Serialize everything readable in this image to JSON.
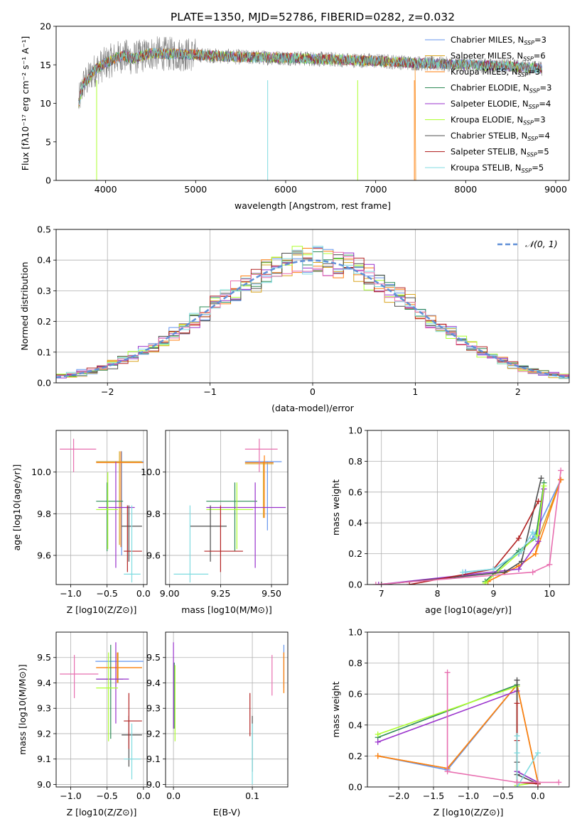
{
  "title": "PLATE=1350, MJD=52786, FIBERID=0282, z=0.032",
  "colors": {
    "ChM": "#6495ed",
    "SaM": "#daa520",
    "KrM": "#ff7f0e",
    "ChE": "#2e8b57",
    "SaE": "#9932cc",
    "KrE": "#adff2f",
    "ChS": "#4d4d4d",
    "SaS": "#b22222",
    "KrS": "#7fdbe0",
    "pink": "#e86fb0",
    "model_gray": "#808080",
    "gauss": "#5f8fd7"
  },
  "legend_spectrum": [
    {
      "label": "Chabrier MILES, N",
      "sub": "SSP",
      "tail": "=3",
      "color": "#6495ed"
    },
    {
      "label": "Salpeter MILES, N",
      "sub": "SSP",
      "tail": "=6",
      "color": "#daa520"
    },
    {
      "label": "Kroupa MILES, N",
      "sub": "SSP",
      "tail": "=3",
      "color": "#ff7f0e"
    },
    {
      "label": "Chabrier ELODIE, N",
      "sub": "SSP",
      "tail": "=3",
      "color": "#2e8b57"
    },
    {
      "label": "Salpeter ELODIE, N",
      "sub": "SSP",
      "tail": "=4",
      "color": "#9932cc"
    },
    {
      "label": "Kroupa ELODIE, N",
      "sub": "SSP",
      "tail": "=3",
      "color": "#adff2f"
    },
    {
      "label": "Chabrier STELIB, N",
      "sub": "SSP",
      "tail": "=4",
      "color": "#4d4d4d"
    },
    {
      "label": "Salpeter STELIB, N",
      "sub": "SSP",
      "tail": "=5",
      "color": "#b22222"
    },
    {
      "label": "Kroupa STELIB, N",
      "sub": "SSP",
      "tail": "=5",
      "color": "#7fdbe0"
    }
  ],
  "legend_gauss": "𝒩(0, 1)",
  "chart_data": [
    {
      "type": "line",
      "title": "PLATE=1350, MJD=52786, FIBERID=0282, z=0.032",
      "xlabel": "wavelength [Angstrom, rest frame]",
      "ylabel": "Flux [fλ10⁻¹⁷ erg cm⁻² s⁻¹ A⁻¹]",
      "xlim": [
        3450,
        9150
      ],
      "ylim": [
        0,
        20
      ],
      "xticks": [
        4000,
        5000,
        6000,
        7000,
        8000,
        9000
      ],
      "yticks": [
        0,
        5,
        10,
        15,
        20
      ],
      "data_range": [
        3700,
        8850
      ],
      "model_dropouts": [
        {
          "x": 3900,
          "y": 0
        },
        {
          "x": 5800,
          "y": 0
        },
        {
          "x": 6800,
          "y": 0
        },
        {
          "x": 7430,
          "y": 0
        }
      ],
      "continuum": [
        [
          3700,
          10
        ],
        [
          3750,
          12.5
        ],
        [
          3800,
          13
        ],
        [
          3850,
          14
        ],
        [
          3900,
          14.5
        ],
        [
          4000,
          15.2
        ],
        [
          4100,
          15.8
        ],
        [
          4200,
          16.2
        ],
        [
          4300,
          15.8
        ],
        [
          4500,
          16.5
        ],
        [
          5000,
          16.3
        ],
        [
          5500,
          16
        ],
        [
          6000,
          15.9
        ],
        [
          6500,
          15.7
        ],
        [
          7000,
          15.5
        ],
        [
          7500,
          15.2
        ],
        [
          8000,
          15
        ],
        [
          8500,
          14.8
        ],
        [
          8850,
          14.5
        ]
      ],
      "grid": false,
      "legend_position": "top-right"
    },
    {
      "type": "histogram",
      "xlabel": "(data-model)/error",
      "ylabel": "Normed distribution",
      "xlim": [
        -2.5,
        2.5
      ],
      "ylim": [
        0,
        0.5
      ],
      "xticks": [
        -2,
        -1,
        0,
        1,
        2
      ],
      "yticks": [
        0.0,
        0.1,
        0.2,
        0.3,
        0.4,
        0.5
      ],
      "bin_width": 0.1,
      "gauss": {
        "mean": 0,
        "sigma": 1,
        "label": "𝒩(0, 1)"
      },
      "grid": true,
      "legend_position": "top-right"
    },
    {
      "type": "scatter",
      "xlabel": "Z [log10(Z/Z⊙)]",
      "ylabel": "age [log10(age/yr)]",
      "xlim": [
        -1.2,
        0.05
      ],
      "ylim": [
        9.46,
        10.2
      ],
      "xticks": [
        -1.0,
        -0.5,
        0.0
      ],
      "yticks": [
        9.6,
        9.8,
        10.0
      ],
      "errorbars": [
        {
          "c": "ChM",
          "x": -0.3,
          "y": 10.05,
          "xl": -0.65,
          "xh": 0.0,
          "yl": 9.6,
          "yh": 10.1
        },
        {
          "c": "SaM",
          "x": -0.33,
          "y": 10.05,
          "xl": -0.65,
          "xh": -0.02,
          "yl": 9.65,
          "yh": 10.1
        },
        {
          "c": "KrM",
          "x": -0.31,
          "y": 10.045,
          "xl": -0.65,
          "xh": 0.0,
          "yl": 9.64,
          "yh": 10.1
        },
        {
          "c": "ChE",
          "x": -0.5,
          "y": 9.86,
          "xl": -0.65,
          "xh": -0.28,
          "yl": 9.62,
          "yh": 9.95
        },
        {
          "c": "SaE",
          "x": -0.38,
          "y": 9.83,
          "xl": -0.62,
          "xh": -0.12,
          "yl": 9.54,
          "yh": 10.05
        },
        {
          "c": "KrE",
          "x": -0.49,
          "y": 9.82,
          "xl": -0.65,
          "xh": -0.35,
          "yl": 9.63,
          "yh": 10.0
        },
        {
          "c": "ChS",
          "x": -0.2,
          "y": 9.74,
          "xl": -0.3,
          "xh": -0.02,
          "yl": 9.57,
          "yh": 9.84
        },
        {
          "c": "SaS",
          "x": -0.22,
          "y": 9.62,
          "xl": -0.27,
          "xh": -0.02,
          "yl": 9.52,
          "yh": 9.84
        },
        {
          "c": "KrS",
          "x": -0.16,
          "y": 9.51,
          "xl": -0.27,
          "xh": -0.04,
          "yl": 9.47,
          "yh": 9.84
        },
        {
          "c": "pink",
          "x": -0.96,
          "y": 10.11,
          "xl": -1.15,
          "xh": -0.65,
          "yl": 10.0,
          "yh": 10.16
        }
      ],
      "grid": true
    },
    {
      "type": "scatter",
      "xlabel": "mass [log10(M/M⊙)]",
      "ylabel": "",
      "xlim": [
        8.98,
        9.58
      ],
      "ylim": [
        9.46,
        10.2
      ],
      "xticks": [
        9.0,
        9.25,
        9.5
      ],
      "yticks": [
        9.6,
        9.8,
        10.0
      ],
      "errorbars": [
        {
          "c": "ChM",
          "x": 9.48,
          "y": 10.05,
          "xl": 9.37,
          "xh": 9.55,
          "yl": 9.72,
          "yh": 10.05
        },
        {
          "c": "SaM",
          "x": 9.46,
          "y": 10.04,
          "xl": 9.37,
          "xh": 9.51,
          "yl": 9.78,
          "yh": 10.05
        },
        {
          "c": "KrM",
          "x": 9.465,
          "y": 10.045,
          "xl": 9.37,
          "xh": 9.51,
          "yl": 9.78,
          "yh": 10.08
        },
        {
          "c": "ChE",
          "x": 9.32,
          "y": 9.86,
          "xl": 9.18,
          "xh": 9.43,
          "yl": 9.62,
          "yh": 9.95
        },
        {
          "c": "SaE",
          "x": 9.42,
          "y": 9.83,
          "xl": 9.18,
          "xh": 9.57,
          "yl": 9.54,
          "yh": 9.95
        },
        {
          "c": "KrE",
          "x": 9.33,
          "y": 9.82,
          "xl": 9.18,
          "xh": 9.41,
          "yl": 9.63,
          "yh": 9.95
        },
        {
          "c": "ChS",
          "x": 9.2,
          "y": 9.74,
          "xl": 9.1,
          "xh": 9.28,
          "yl": 9.57,
          "yh": 9.84
        },
        {
          "c": "SaS",
          "x": 9.25,
          "y": 9.62,
          "xl": 9.17,
          "xh": 9.36,
          "yl": 9.52,
          "yh": 9.84
        },
        {
          "c": "KrS",
          "x": 9.1,
          "y": 9.51,
          "xl": 9.02,
          "xh": 9.19,
          "yl": 9.47,
          "yh": 9.84
        },
        {
          "c": "pink",
          "x": 9.44,
          "y": 10.11,
          "xl": 9.37,
          "xh": 9.53,
          "yl": 10.0,
          "yh": 10.16
        }
      ],
      "grid": true
    },
    {
      "type": "line",
      "xlabel": "age [log10(age/yr)]",
      "ylabel": "mass weight",
      "xlim": [
        6.75,
        10.35
      ],
      "ylim": [
        0,
        1
      ],
      "xticks": [
        7,
        8,
        9,
        10
      ],
      "yticks": [
        0.0,
        0.2,
        0.4,
        0.6,
        0.8,
        1.0
      ],
      "series": [
        {
          "c": "ChM",
          "x": [
            8.5,
            9.0,
            9.45,
            9.7,
            10.2
          ],
          "y": [
            0.08,
            0.1,
            0.2,
            0.3,
            0.68
          ]
        },
        {
          "c": "SaM",
          "x": [
            8.9,
            9.45,
            9.75,
            9.8,
            10.2
          ],
          "y": [
            0.02,
            0.12,
            0.2,
            0.3,
            0.68
          ]
        },
        {
          "c": "KrM",
          "x": [
            8.9,
            9.45,
            9.75,
            10.2
          ],
          "y": [
            0.02,
            0.12,
            0.2,
            0.68
          ]
        },
        {
          "c": "ChE",
          "x": [
            8.85,
            9.45,
            9.75,
            9.9
          ],
          "y": [
            0.02,
            0.22,
            0.3,
            0.66
          ]
        },
        {
          "c": "SaE",
          "x": [
            6.95,
            9.45,
            9.8,
            9.9
          ],
          "y": [
            0.0,
            0.1,
            0.28,
            0.62
          ]
        },
        {
          "c": "KrE",
          "x": [
            8.85,
            9.5,
            9.78,
            9.9
          ],
          "y": [
            0.01,
            0.22,
            0.32,
            0.64
          ]
        },
        {
          "c": "ChS",
          "x": [
            7.0,
            9.2,
            9.5,
            9.85
          ],
          "y": [
            0.0,
            0.08,
            0.15,
            0.69
          ]
        },
        {
          "c": "SaS",
          "x": [
            7.5,
            9.0,
            9.45,
            9.8
          ],
          "y": [
            0.0,
            0.1,
            0.3,
            0.54
          ]
        },
        {
          "c": "KrS",
          "x": [
            8.45,
            9.0,
            9.5,
            9.7,
            9.75
          ],
          "y": [
            0.08,
            0.1,
            0.22,
            0.34,
            0.3
          ]
        },
        {
          "c": "pink",
          "x": [
            6.9,
            9.7,
            10.0,
            10.2
          ],
          "y": [
            0.0,
            0.08,
            0.13,
            0.74
          ]
        }
      ],
      "grid": true
    },
    {
      "type": "scatter",
      "xlabel": "Z [log10(Z/Z⊙)]",
      "ylabel": "mass [log10(M/M⊙)]",
      "xlim": [
        -1.2,
        0.05
      ],
      "ylim": [
        8.99,
        9.6
      ],
      "xticks": [
        -1.0,
        -0.5,
        0.0
      ],
      "yticks": [
        9.0,
        9.1,
        9.2,
        9.3,
        9.4,
        9.5
      ],
      "errorbars": [
        {
          "c": "ChM",
          "x": -0.35,
          "y": 9.485,
          "xl": -0.66,
          "xh": 0.0,
          "yl": 9.4,
          "yh": 9.52
        },
        {
          "c": "SaM",
          "x": -0.35,
          "y": 9.46,
          "xl": -0.65,
          "xh": -0.02,
          "yl": 9.4,
          "yh": 9.52
        },
        {
          "c": "KrM",
          "x": -0.36,
          "y": 9.46,
          "xl": -0.65,
          "xh": -0.02,
          "yl": 9.4,
          "yh": 9.52
        },
        {
          "c": "ChE",
          "x": -0.45,
          "y": 9.415,
          "xl": -0.65,
          "xh": -0.28,
          "yl": 9.18,
          "yh": 9.55
        },
        {
          "c": "SaE",
          "x": -0.38,
          "y": 9.415,
          "xl": -0.65,
          "xh": -0.2,
          "yl": 9.24,
          "yh": 9.56
        },
        {
          "c": "KrE",
          "x": -0.48,
          "y": 9.38,
          "xl": -0.65,
          "xh": -0.35,
          "yl": 9.17,
          "yh": 9.52
        },
        {
          "c": "ChS",
          "x": -0.2,
          "y": 9.195,
          "xl": -0.3,
          "xh": -0.02,
          "yl": 9.07,
          "yh": 9.27
        },
        {
          "c": "SaS",
          "x": -0.2,
          "y": 9.25,
          "xl": -0.27,
          "xh": -0.02,
          "yl": 9.14,
          "yh": 9.36
        },
        {
          "c": "KrS",
          "x": -0.16,
          "y": 9.1,
          "xl": -0.27,
          "xh": -0.04,
          "yl": 9.02,
          "yh": 9.24
        },
        {
          "c": "pink",
          "x": -0.95,
          "y": 9.435,
          "xl": -1.15,
          "xh": -0.62,
          "yl": 9.34,
          "yh": 9.51
        }
      ],
      "grid": true
    },
    {
      "type": "scatter",
      "xlabel": "E(B-V)",
      "ylabel": "",
      "xlim": [
        -0.01,
        0.145
      ],
      "ylim": [
        8.99,
        9.6
      ],
      "xticks": [
        0.0,
        0.1
      ],
      "yticks": [
        9.0,
        9.1,
        9.2,
        9.3,
        9.4,
        9.5
      ],
      "errorbars": [
        {
          "c": "ChM",
          "x": 0.14,
          "y": 9.48,
          "yl": 9.38,
          "yh": 9.55
        },
        {
          "c": "SaM",
          "x": 0.14,
          "y": 9.46,
          "yl": 9.36,
          "yh": 9.52
        },
        {
          "c": "KrM",
          "x": 0.14,
          "y": 9.46,
          "yl": 9.36,
          "yh": 9.52
        },
        {
          "c": "ChE",
          "x": 0.001,
          "y": 9.41,
          "yl": 9.22,
          "yh": 9.48
        },
        {
          "c": "SaE",
          "x": 0.0,
          "y": 9.41,
          "yl": 9.22,
          "yh": 9.56
        },
        {
          "c": "KrE",
          "x": 0.002,
          "y": 9.38,
          "yl": 9.17,
          "yh": 9.47
        },
        {
          "c": "ChS",
          "x": 0.1,
          "y": 9.2,
          "yl": 9.05,
          "yh": 9.27
        },
        {
          "c": "SaS",
          "x": 0.097,
          "y": 9.25,
          "yl": 9.19,
          "yh": 9.36
        },
        {
          "c": "KrS",
          "x": 0.1,
          "y": 9.1,
          "yl": 9.0,
          "yh": 9.24
        },
        {
          "c": "pink",
          "x": 0.125,
          "y": 9.43,
          "yl": 9.35,
          "yh": 9.51
        }
      ],
      "grid": true
    },
    {
      "type": "line",
      "xlabel": "Z [log10(Z/Z⊙)]",
      "ylabel": "mass weight",
      "xlim": [
        -2.45,
        0.45
      ],
      "ylim": [
        0,
        1
      ],
      "xticks": [
        -2.0,
        -1.5,
        -1.0,
        -0.5,
        0.0
      ],
      "yticks": [
        0.0,
        0.2,
        0.4,
        0.6,
        0.8,
        1.0
      ],
      "series": [
        {
          "c": "ChM",
          "x": [
            -2.3,
            -1.3,
            -0.3,
            0.0
          ],
          "y": [
            0.2,
            0.11,
            0.66,
            0.03
          ]
        },
        {
          "c": "SaM",
          "x": [
            -2.3,
            -1.3,
            -0.3,
            0.0
          ],
          "y": [
            0.2,
            0.12,
            0.66,
            0.03
          ]
        },
        {
          "c": "KrM",
          "x": [
            -2.3,
            -1.3,
            -0.3,
            0.0
          ],
          "y": [
            0.2,
            0.12,
            0.66,
            0.03
          ]
        },
        {
          "c": "ChE",
          "x": [
            -2.3,
            -0.3,
            -0.3,
            0.0
          ],
          "y": [
            0.32,
            0.66,
            0.1,
            0.03
          ]
        },
        {
          "c": "SaE",
          "x": [
            -2.3,
            -0.3,
            -0.3,
            0.0
          ],
          "y": [
            0.29,
            0.62,
            0.1,
            0.03
          ]
        },
        {
          "c": "KrE",
          "x": [
            -2.3,
            -0.3,
            -0.3,
            0.0
          ],
          "y": [
            0.34,
            0.65,
            0.01,
            0.03
          ]
        },
        {
          "c": "ChS",
          "x": [
            -0.3,
            -0.3,
            -0.3,
            0.0
          ],
          "y": [
            0.69,
            0.16,
            0.08,
            0.02
          ]
        },
        {
          "c": "SaS",
          "x": [
            -0.3,
            -0.3,
            -0.3,
            0.0
          ],
          "y": [
            0.54,
            0.3,
            0.03,
            0.02
          ]
        },
        {
          "c": "KrS",
          "x": [
            -0.3,
            -0.3,
            -0.3,
            0.0
          ],
          "y": [
            0.33,
            0.22,
            0.0,
            0.22
          ]
        },
        {
          "c": "pink",
          "x": [
            -1.3,
            -1.3,
            -0.3,
            0.0,
            0.3
          ],
          "y": [
            0.74,
            0.1,
            0.03,
            0.03,
            0.03
          ]
        }
      ],
      "grid": true
    }
  ]
}
